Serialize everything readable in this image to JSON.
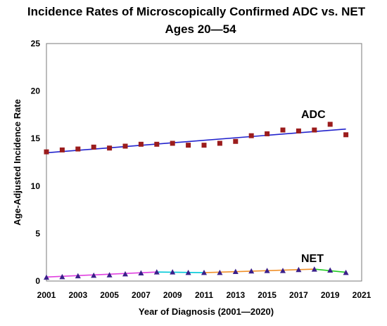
{
  "chart_data": {
    "type": "scatter",
    "title": "Incidence Rates of Microscopically Confirmed ADC vs. NET",
    "subtitle": "Ages 20—54",
    "xlabel": "Year of Diagnosis (2001—2020)",
    "ylabel": "Age-Adjusted Incidence Rate",
    "xlim": [
      2001,
      2021
    ],
    "ylim": [
      0,
      25
    ],
    "xticks": [
      2001,
      2003,
      2005,
      2007,
      2009,
      2011,
      2013,
      2015,
      2017,
      2019,
      2021
    ],
    "yticks": [
      0,
      5,
      10,
      15,
      20,
      25
    ],
    "grid": false,
    "series": [
      {
        "name": "ADC",
        "marker": "square",
        "color": "#9b1c1c",
        "x": [
          2001,
          2002,
          2003,
          2004,
          2005,
          2006,
          2007,
          2008,
          2009,
          2010,
          2011,
          2012,
          2013,
          2014,
          2015,
          2016,
          2017,
          2018,
          2019,
          2020
        ],
        "values": [
          13.6,
          13.8,
          13.9,
          14.1,
          14.0,
          14.2,
          14.4,
          14.4,
          14.5,
          14.3,
          14.3,
          14.5,
          14.7,
          15.3,
          15.5,
          15.9,
          15.8,
          15.9,
          16.5,
          15.4
        ],
        "fit": {
          "x": [
            2001,
            2020
          ],
          "y": [
            13.5,
            16.0
          ],
          "color": "#2222cc"
        }
      },
      {
        "name": "NET",
        "marker": "triangle",
        "color": "#3a1f8a",
        "x": [
          2001,
          2002,
          2003,
          2004,
          2005,
          2006,
          2007,
          2008,
          2009,
          2010,
          2011,
          2012,
          2013,
          2014,
          2015,
          2016,
          2017,
          2018,
          2019,
          2020
        ],
        "values": [
          0.4,
          0.45,
          0.55,
          0.6,
          0.65,
          0.75,
          0.85,
          0.95,
          0.95,
          0.9,
          0.9,
          0.9,
          1.0,
          1.05,
          1.1,
          1.1,
          1.2,
          1.25,
          1.15,
          0.9
        ],
        "fit_segments": [
          {
            "x": [
              2001,
              2008
            ],
            "y": [
              0.42,
              0.95
            ],
            "color": "#e040e0"
          },
          {
            "x": [
              2008,
              2011
            ],
            "y": [
              0.95,
              0.88
            ],
            "color": "#00c8d8"
          },
          {
            "x": [
              2011,
              2018
            ],
            "y": [
              0.88,
              1.25
            ],
            "color": "#f0902a"
          },
          {
            "x": [
              2018,
              2020
            ],
            "y": [
              1.25,
              0.92
            ],
            "color": "#22cc22"
          }
        ]
      }
    ]
  }
}
